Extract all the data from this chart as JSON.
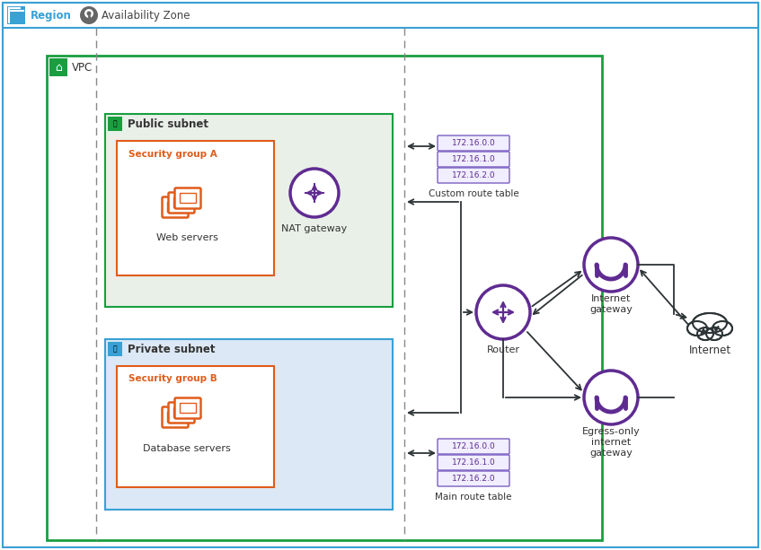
{
  "outer_border_color": "#3aa0d5",
  "vpc_border_color": "#1a9e3f",
  "public_subnet_fill": "#e8f0e8",
  "public_subnet_border": "#1a9e3f",
  "private_subnet_fill": "#dce8f5",
  "private_subnet_border": "#3aa0d5",
  "security_group_border": "#e05c1a",
  "security_group_text": "#e05c1a",
  "region_icon_color": "#3aa0d5",
  "router_color": "#5f2b91",
  "igw_color": "#5f2b91",
  "egw_color": "#5f2b91",
  "nat_color": "#5f2b91",
  "server_color": "#e05c1a",
  "internet_color": "#2d3436",
  "route_table_label_color": "#5f2b91",
  "route_table_bg": "#f0eeff",
  "route_table_border": "#7b5fc0",
  "arrow_color": "#2d3436",
  "title_region": "Region",
  "title_az": "Availability Zone",
  "title_vpc": "VPC",
  "title_public": "Public subnet",
  "title_private": "Private subnet",
  "title_sga": "Security group A",
  "title_sgb": "Security group B",
  "title_web": "Web servers",
  "title_db": "Database servers",
  "title_nat": "NAT gateway",
  "title_router": "Router",
  "title_igw": "Internet\ngateway",
  "title_egw": "Egress-only\ninternet\ngateway",
  "title_internet": "Internet",
  "title_custom": "Custom route table",
  "title_main": "Main route table",
  "route_labels": [
    "172.16.0.0",
    "172.16.1.0",
    "172.16.2.0"
  ]
}
